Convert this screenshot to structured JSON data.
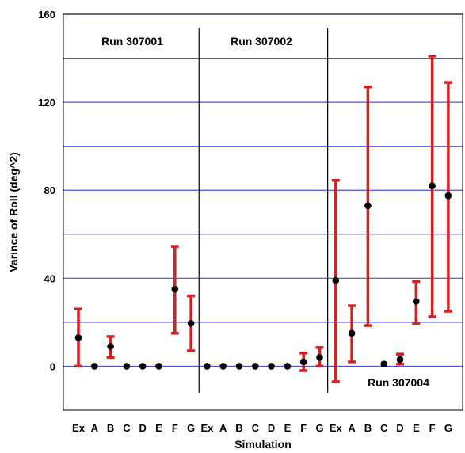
{
  "chart_data": {
    "type": "scatter",
    "title": "",
    "xlabel": "Simulation",
    "ylabel": "Varince of Roll (deg^2)",
    "ylim": [
      -20,
      160
    ],
    "yticks": [
      0,
      40,
      80,
      120,
      160
    ],
    "grid": true,
    "colors": {
      "grid": "#4f4fd6",
      "errorbar": "#d42020",
      "point": "#000000",
      "separator": "#000000",
      "frame": "#000000"
    },
    "categories": [
      "Ex",
      "A",
      "B",
      "C",
      "D",
      "E",
      "F",
      "G"
    ],
    "runs": [
      {
        "label": "Run 307001",
        "points": [
          {
            "x": "Ex",
            "y": 13,
            "low": 0,
            "high": 26
          },
          {
            "x": "A",
            "y": 0
          },
          {
            "x": "B",
            "y": 9,
            "low": 4,
            "high": 13.5
          },
          {
            "x": "C",
            "y": 0
          },
          {
            "x": "D",
            "y": 0
          },
          {
            "x": "E",
            "y": 0
          },
          {
            "x": "F",
            "y": 35,
            "low": 15,
            "high": 54.5
          },
          {
            "x": "G",
            "y": 19.5,
            "low": 7,
            "high": 32
          }
        ]
      },
      {
        "label": "Run 307002",
        "points": [
          {
            "x": "Ex",
            "y": 0
          },
          {
            "x": "A",
            "y": 0
          },
          {
            "x": "B",
            "y": 0
          },
          {
            "x": "C",
            "y": 0
          },
          {
            "x": "D",
            "y": 0
          },
          {
            "x": "E",
            "y": 0
          },
          {
            "x": "F",
            "y": 2,
            "low": -2,
            "high": 6
          },
          {
            "x": "G",
            "y": 4,
            "low": 0,
            "high": 8.5
          }
        ]
      },
      {
        "label": "Run 307004",
        "points": [
          {
            "x": "Ex",
            "y": 39,
            "low": -7,
            "high": 84.5
          },
          {
            "x": "A",
            "y": 15,
            "low": 2,
            "high": 27.5
          },
          {
            "x": "B",
            "y": 73,
            "low": 18.5,
            "high": 127
          },
          {
            "x": "C",
            "y": 1
          },
          {
            "x": "D",
            "y": 3,
            "low": 1,
            "high": 5.5
          },
          {
            "x": "E",
            "y": 29.5,
            "low": 19.5,
            "high": 38.5
          },
          {
            "x": "F",
            "y": 82,
            "low": 22.5,
            "high": 141
          },
          {
            "x": "G",
            "y": 77.5,
            "low": 25,
            "high": 129
          }
        ]
      }
    ]
  }
}
